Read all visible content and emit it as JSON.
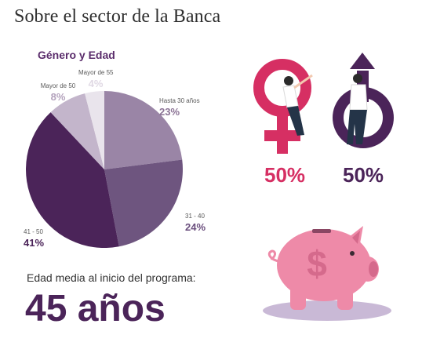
{
  "header": {
    "title": "Sobre el sector de la Banca"
  },
  "chart_data": {
    "type": "pie",
    "title": "Género y Edad",
    "slices": [
      {
        "label": "Hasta 30 años",
        "value": 23,
        "display": "23%",
        "color": "#9a85a6"
      },
      {
        "label": "31 - 40",
        "value": 24,
        "display": "24%",
        "color": "#6e557f"
      },
      {
        "label": "41 - 50",
        "value": 41,
        "display": "41%",
        "color": "#4b2459"
      },
      {
        "label": "Mayor de 50",
        "value": 8,
        "display": "8%",
        "color": "#c3b5cb"
      },
      {
        "label": "Mayor de 55",
        "value": 4,
        "display": "4%",
        "color": "#e9e4ec"
      }
    ]
  },
  "gender": {
    "female": {
      "value": "50%",
      "color": "#d62f63",
      "icon": "female-symbol-icon"
    },
    "male": {
      "value": "50%",
      "color": "#4b2459",
      "icon": "male-symbol-icon"
    }
  },
  "age": {
    "caption": "Edad media al inicio del programa:",
    "value": "45 años"
  },
  "illustration": {
    "icon": "piggy-bank-icon",
    "color": "#ee8aa8"
  }
}
